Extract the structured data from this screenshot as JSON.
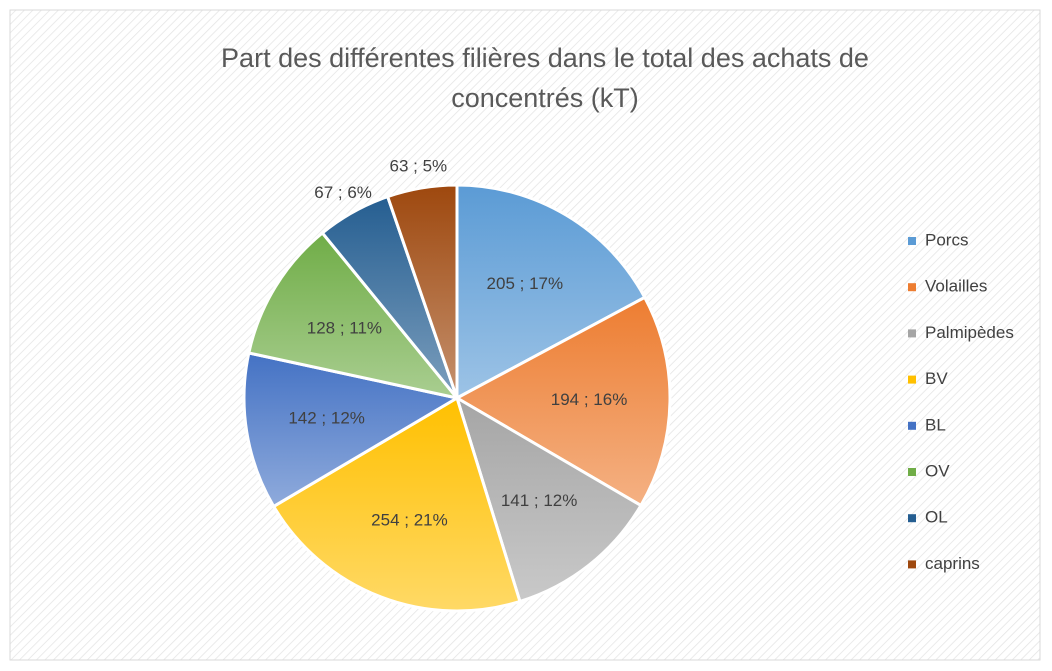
{
  "chart_data": {
    "type": "pie",
    "title": "Part des différentes filières dans le total des achats de concentrés (kT)",
    "categories": [
      "Porcs",
      "Volailles",
      "Palmipèdes",
      "BV",
      "BL",
      "OV",
      "OL",
      "caprins"
    ],
    "values": [
      205,
      194,
      141,
      254,
      142,
      128,
      67,
      63
    ],
    "value_labels": [
      "205 ; 17%",
      "194 ; 16%",
      "141 ; 12%",
      "254 ; 21%",
      "142 ; 12%",
      "128 ; 11%",
      "67 ; 6%",
      "63 ; 5%"
    ],
    "colors": [
      "#5b9bd5",
      "#ed7d31",
      "#a5a5a5",
      "#ffc000",
      "#4472c4",
      "#70ad47",
      "#255e91",
      "#9e480e"
    ],
    "legend": "right"
  }
}
